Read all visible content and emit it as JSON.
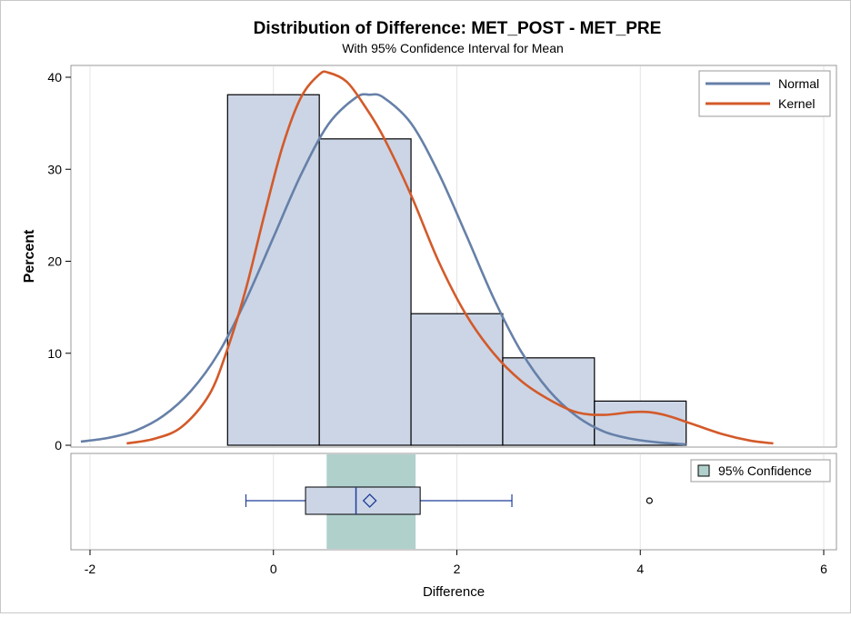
{
  "chart_data": {
    "type": "bar",
    "title": "Distribution of Difference: MET_POST - MET_PRE",
    "subtitle": "With 95% Confidence Interval for Mean",
    "xlabel": "Difference",
    "ylabel": "Percent",
    "xlim": [
      -2,
      6
    ],
    "ylim": [
      0,
      40
    ],
    "x_ticks": [
      "-2",
      "0",
      "2",
      "4",
      "6"
    ],
    "y_ticks": [
      "0",
      "10",
      "20",
      "30",
      "40"
    ],
    "grid": "vertical",
    "histogram": {
      "bin_edges": [
        -0.5,
        0.5,
        1.5,
        2.5,
        3.5,
        4.5
      ],
      "values": [
        38.1,
        33.3,
        14.3,
        9.5,
        4.8
      ],
      "fill": "#cbd5e6",
      "stroke": "#000000"
    },
    "series": [
      {
        "name": "Normal",
        "color": "#6680a8",
        "x": [
          -2.1,
          -1.8,
          -1.5,
          -1.2,
          -0.9,
          -0.6,
          -0.3,
          0.0,
          0.3,
          0.6,
          0.9,
          1.05,
          1.2,
          1.5,
          1.8,
          2.1,
          2.4,
          2.7,
          3.0,
          3.3,
          3.6,
          3.9,
          4.2,
          4.5
        ],
        "y": [
          0.4,
          0.8,
          1.6,
          3.2,
          5.9,
          10.0,
          15.8,
          22.6,
          29.4,
          34.9,
          37.8,
          38.1,
          37.8,
          35.0,
          29.6,
          22.9,
          16.0,
          10.2,
          6.0,
          3.2,
          1.5,
          0.7,
          0.3,
          0.1
        ]
      },
      {
        "name": "Kernel",
        "color": "#d35a2a",
        "x": [
          -1.6,
          -1.3,
          -1.0,
          -0.7,
          -0.5,
          -0.3,
          -0.1,
          0.1,
          0.3,
          0.5,
          0.6,
          0.8,
          1.0,
          1.2,
          1.5,
          1.8,
          2.1,
          2.4,
          2.7,
          3.0,
          3.3,
          3.6,
          3.9,
          4.1,
          4.3,
          4.6,
          4.9,
          5.2,
          5.45
        ],
        "y": [
          0.2,
          0.7,
          2.0,
          5.5,
          10.5,
          17.0,
          25.0,
          32.5,
          37.8,
          40.3,
          40.5,
          39.5,
          36.8,
          33.5,
          27.2,
          20.0,
          14.2,
          10.0,
          7.0,
          5.0,
          3.6,
          3.3,
          3.6,
          3.6,
          3.2,
          2.2,
          1.2,
          0.5,
          0.2
        ]
      }
    ],
    "legend": {
      "position": "top-right",
      "entries": [
        {
          "name": "Normal",
          "color": "#6680a8"
        },
        {
          "name": "Kernel",
          "color": "#d35a2a"
        }
      ]
    },
    "boxplot": {
      "whisker_low": -0.3,
      "q1": 0.35,
      "median": 0.9,
      "q3": 1.6,
      "whisker_high": 2.6,
      "mean": 1.05,
      "outliers": [
        4.1
      ],
      "box_fill": "#cbd5e6",
      "line_color": "#1f3f99",
      "ci_low": 0.58,
      "ci_high": 1.55,
      "ci_color": "#b0d0cc",
      "ci_legend": "95% Confidence"
    }
  }
}
